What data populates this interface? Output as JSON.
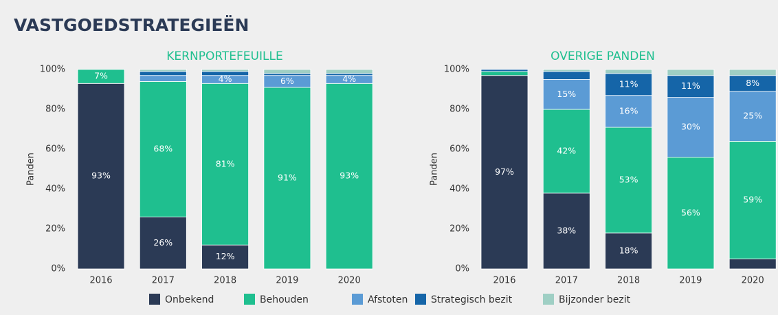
{
  "title": "VASTGOEDSTRATEGIEËN",
  "chart_data": [
    {
      "type": "bar",
      "stacked": true,
      "title": "KERNPORTEFEUILLE",
      "ylabel": "Panden",
      "categories": [
        "2016",
        "2017",
        "2018",
        "2019",
        "2020"
      ],
      "ylim": [
        0,
        100
      ],
      "yticks": [
        {
          "value": 0,
          "label": "0%"
        },
        {
          "value": 20,
          "label": "20%"
        },
        {
          "value": 40,
          "label": "40%"
        },
        {
          "value": 60,
          "label": "60%"
        },
        {
          "value": 80,
          "label": "80%"
        },
        {
          "value": 100,
          "label": "100%"
        }
      ],
      "series": [
        {
          "name": "Onbekend",
          "color": "#2b3a55",
          "values": [
            93,
            26,
            12,
            0,
            0
          ],
          "value_labels": [
            "93%",
            "26%",
            "12%",
            null,
            null
          ]
        },
        {
          "name": "Behouden",
          "color": "#1fbf8f",
          "values": [
            7,
            68,
            81,
            91,
            93
          ],
          "value_labels": [
            "7%",
            "68%",
            "81%",
            "91%",
            "93%"
          ]
        },
        {
          "name": "Afstoten",
          "color": "#5b9bd5",
          "values": [
            0,
            3,
            4,
            6,
            4
          ],
          "value_labels": [
            null,
            null,
            "4%",
            "6%",
            "4%"
          ]
        },
        {
          "name": "Strategisch bezit",
          "color": "#1565a8",
          "values": [
            0,
            2,
            2,
            1,
            1
          ],
          "value_labels": [
            null,
            null,
            null,
            null,
            null
          ]
        },
        {
          "name": "Bijzonder bezit",
          "color": "#9fcfc4",
          "values": [
            0,
            1,
            1,
            2,
            2
          ],
          "value_labels": [
            null,
            null,
            null,
            null,
            null
          ]
        }
      ]
    },
    {
      "type": "bar",
      "stacked": true,
      "title": "OVERIGE PANDEN",
      "ylabel": "Panden",
      "categories": [
        "2016",
        "2017",
        "2018",
        "2019",
        "2020"
      ],
      "ylim": [
        0,
        100
      ],
      "yticks": [
        {
          "value": 0,
          "label": "0%"
        },
        {
          "value": 20,
          "label": "20%"
        },
        {
          "value": 40,
          "label": "40%"
        },
        {
          "value": 60,
          "label": "60%"
        },
        {
          "value": 80,
          "label": "80%"
        },
        {
          "value": 100,
          "label": "100%"
        }
      ],
      "series": [
        {
          "name": "Onbekend",
          "color": "#2b3a55",
          "values": [
            97,
            38,
            18,
            0,
            5
          ],
          "value_labels": [
            "97%",
            "38%",
            "18%",
            null,
            null
          ]
        },
        {
          "name": "Behouden",
          "color": "#1fbf8f",
          "values": [
            2,
            42,
            53,
            56,
            59
          ],
          "value_labels": [
            null,
            "42%",
            "53%",
            "56%",
            "59%"
          ]
        },
        {
          "name": "Afstoten",
          "color": "#5b9bd5",
          "values": [
            0,
            15,
            16,
            30,
            25
          ],
          "value_labels": [
            null,
            "15%",
            "16%",
            "30%",
            "25%"
          ]
        },
        {
          "name": "Strategisch bezit",
          "color": "#1565a8",
          "values": [
            1,
            4,
            11,
            11,
            8
          ],
          "value_labels": [
            null,
            null,
            "11%",
            "11%",
            "8%"
          ]
        },
        {
          "name": "Bijzonder bezit",
          "color": "#9fcfc4",
          "values": [
            0,
            1,
            2,
            3,
            3
          ],
          "value_labels": [
            null,
            null,
            null,
            null,
            null
          ]
        }
      ]
    }
  ]
}
